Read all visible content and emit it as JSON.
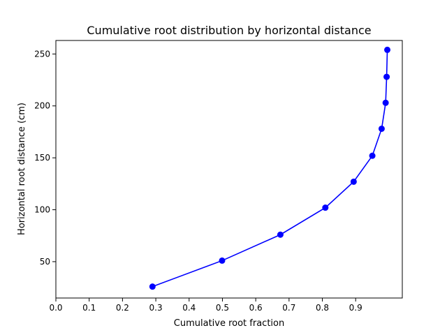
{
  "chart_data": {
    "type": "line",
    "title": "Cumulative root distribution by horizontal distance",
    "xlabel": "Cumulative root fraction",
    "ylabel": "Horizontal root distance (cm)",
    "xlim": [
      0.0,
      1.04
    ],
    "ylim": [
      15,
      263
    ],
    "xticks": [
      0.0,
      0.1,
      0.2,
      0.3,
      0.4,
      0.5,
      0.6,
      0.7,
      0.8,
      0.9
    ],
    "xtick_labels": [
      "0.0",
      "0.1",
      "0.2",
      "0.3",
      "0.4",
      "0.5",
      "0.6",
      "0.7",
      "0.8",
      "0.9"
    ],
    "yticks": [
      50,
      100,
      150,
      200,
      250
    ],
    "ytick_labels": [
      "50",
      "100",
      "150",
      "200",
      "250"
    ],
    "grid": false,
    "series": [
      {
        "color": "#0000ff",
        "marker": "circle",
        "x": [
          0.29,
          0.499,
          0.674,
          0.809,
          0.894,
          0.95,
          0.978,
          0.99,
          0.993,
          0.995
        ],
        "y": [
          26,
          51,
          76,
          102,
          127,
          152,
          178,
          203,
          228,
          254
        ]
      }
    ]
  }
}
